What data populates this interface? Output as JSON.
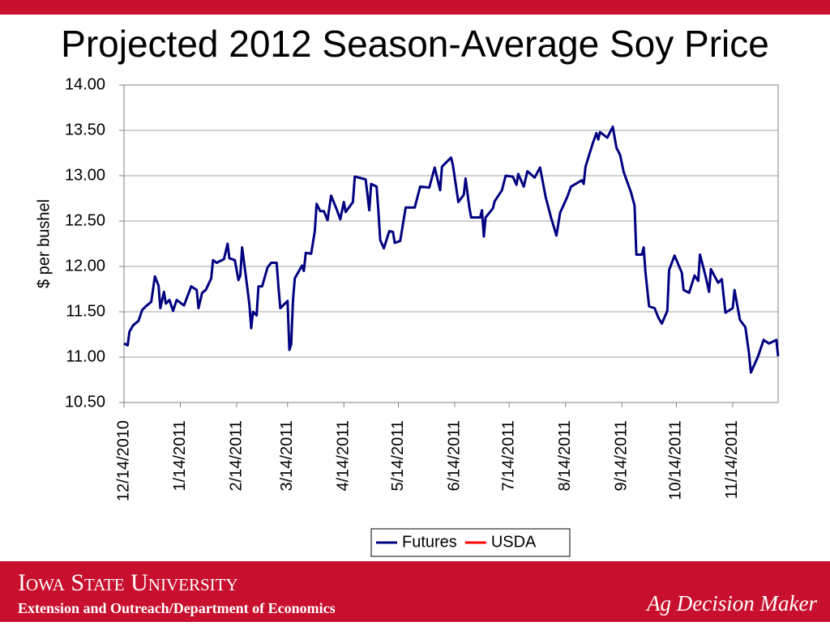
{
  "chart_data": {
    "type": "line",
    "title": "Projected 2012 Season-Average Soy Price",
    "ylabel": "$ per bushel",
    "x": [
      "12/14/2010",
      "12/16/2010",
      "12/17/2010",
      "12/19/2010",
      "12/22/2010",
      "12/24/2010",
      "12/26/2010",
      "12/29/2010",
      "12/31/2010",
      "1/2/2011",
      "1/3/2011",
      "1/5/2011",
      "1/6/2011",
      "1/8/2011",
      "1/10/2011",
      "1/12/2011",
      "1/16/2011",
      "1/20/2011",
      "1/23/2011",
      "1/24/2011",
      "1/26/2011",
      "1/28/2011",
      "1/31/2011",
      "2/1/2011",
      "2/3/2011",
      "2/7/2011",
      "2/9/2011",
      "2/10/2011",
      "2/13/2011",
      "2/15/2011",
      "2/16/2011",
      "2/17/2011",
      "2/19/2011",
      "2/21/2011",
      "2/22/2011",
      "2/23/2011",
      "2/25/2011",
      "2/26/2011",
      "2/28/2011",
      "3/3/2011",
      "3/5/2011",
      "3/8/2011",
      "3/9/2011",
      "3/10/2011",
      "3/14/2011",
      "3/15/2011",
      "3/16/2011",
      "3/17/2011",
      "3/18/2011",
      "3/22/2011",
      "3/23/2011",
      "3/24/2011",
      "3/27/2011",
      "3/29/2011",
      "3/30/2011",
      "4/1/2011",
      "4/3/2011",
      "4/5/2011",
      "4/7/2011",
      "4/10/2011",
      "4/12/2011",
      "4/14/2011",
      "4/15/2011",
      "4/19/2011",
      "4/20/2011",
      "4/26/2011",
      "4/28/2011",
      "4/29/2011",
      "5/2/2011",
      "5/3/2011",
      "5/4/2011",
      "5/6/2011",
      "5/9/2011",
      "5/11/2011",
      "5/12/2011",
      "5/15/2011",
      "5/18/2011",
      "5/21/2011",
      "5/23/2011",
      "5/26/2011",
      "5/31/2011",
      "6/3/2011",
      "6/6/2011",
      "6/7/2011",
      "6/12/2011",
      "6/13/2011",
      "6/16/2011",
      "6/19/2011",
      "6/20/2011",
      "6/22/2011",
      "6/23/2011",
      "6/28/2011",
      "6/29/2011",
      "6/30/2011",
      "7/1/2011",
      "7/5/2011",
      "7/6/2011",
      "7/10/2011",
      "7/12/2011",
      "7/16/2011",
      "7/18/2011",
      "7/19/2011",
      "7/22/2011",
      "7/24/2011",
      "7/28/2011",
      "7/31/2011",
      "8/3/2011",
      "8/6/2011",
      "8/9/2011",
      "8/11/2011",
      "8/15/2011",
      "8/17/2011",
      "8/23/2011",
      "8/24/2011",
      "8/25/2011",
      "8/29/2011",
      "8/31/2011",
      "9/1/2011",
      "9/2/2011",
      "9/6/2011",
      "9/9/2011",
      "9/11/2011",
      "9/13/2011",
      "9/15/2011",
      "9/19/2011",
      "9/21/2011",
      "9/22/2011",
      "9/25/2011",
      "9/26/2011",
      "9/27/2011",
      "9/29/2011",
      "10/2/2011",
      "10/4/2011",
      "10/6/2011",
      "10/9/2011",
      "10/10/2011",
      "10/13/2011",
      "10/17/2011",
      "10/18/2011",
      "10/21/2011",
      "10/24/2011",
      "10/26/2011",
      "10/27/2011",
      "10/30/2011",
      "11/1/2011",
      "11/2/2011",
      "11/6/2011",
      "11/8/2011",
      "11/10/2011",
      "11/14/2011",
      "11/15/2011",
      "11/18/2011",
      "11/21/2011",
      "11/23/2011",
      "11/24/2011",
      "11/28/2011",
      "12/1/2011",
      "12/4/2011",
      "12/8/2011",
      "12/9/2011"
    ],
    "series": [
      {
        "name": "Futures",
        "color": "#000080",
        "values": [
          11.15,
          11.13,
          11.28,
          11.35,
          11.4,
          11.52,
          11.56,
          11.61,
          11.89,
          11.79,
          11.54,
          11.72,
          11.59,
          11.63,
          11.51,
          11.63,
          11.57,
          11.78,
          11.74,
          11.54,
          11.71,
          11.74,
          11.87,
          12.07,
          12.04,
          12.08,
          12.25,
          12.09,
          12.07,
          11.85,
          11.9,
          12.21,
          11.9,
          11.58,
          11.32,
          11.5,
          11.46,
          11.78,
          11.78,
          11.99,
          12.04,
          12.04,
          11.78,
          11.54,
          11.62,
          11.08,
          11.14,
          11.63,
          11.87,
          12.01,
          11.95,
          12.15,
          12.14,
          12.39,
          12.69,
          12.61,
          12.61,
          12.51,
          12.78,
          12.63,
          12.52,
          12.71,
          12.6,
          12.71,
          12.99,
          12.96,
          12.62,
          12.91,
          12.88,
          12.62,
          12.29,
          12.2,
          12.39,
          12.38,
          12.26,
          12.28,
          12.65,
          12.65,
          12.65,
          12.88,
          12.87,
          13.09,
          12.84,
          13.1,
          13.2,
          13.12,
          12.71,
          12.79,
          12.97,
          12.66,
          12.54,
          12.54,
          12.62,
          12.33,
          12.54,
          12.64,
          12.72,
          12.84,
          13.0,
          12.99,
          12.9,
          13.02,
          12.88,
          13.05,
          12.98,
          13.09,
          12.77,
          12.54,
          12.34,
          12.59,
          12.77,
          12.88,
          12.95,
          12.91,
          13.1,
          13.36,
          13.47,
          13.4,
          13.48,
          13.42,
          13.54,
          13.31,
          13.23,
          13.04,
          12.82,
          12.67,
          12.13,
          12.13,
          12.21,
          11.93,
          11.56,
          11.54,
          11.44,
          11.37,
          11.51,
          11.96,
          12.12,
          11.93,
          11.74,
          11.71,
          11.9,
          11.84,
          12.13,
          11.9,
          11.72,
          11.97,
          11.82,
          11.86,
          11.49,
          11.54,
          11.74,
          11.41,
          11.33,
          11.04,
          10.83,
          11.01,
          11.19,
          11.15,
          11.19,
          11.01
        ]
      },
      {
        "name": "USDA",
        "color": "#ff0000",
        "values": [
          null,
          null,
          null,
          null,
          null,
          null,
          null,
          null,
          null,
          null,
          null,
          null,
          null,
          null,
          null,
          null,
          null,
          null,
          null,
          null,
          null,
          null,
          null,
          null,
          null,
          null,
          null,
          null,
          null,
          null,
          null,
          null,
          null,
          null,
          null,
          null,
          null,
          null,
          null,
          null,
          null,
          null,
          null,
          null,
          null,
          null,
          null,
          null,
          null,
          null,
          null,
          null,
          null,
          null,
          null,
          null,
          null,
          null,
          null,
          null,
          null,
          null,
          null,
          null,
          null,
          null,
          null,
          null,
          null,
          null,
          null,
          null,
          null,
          null,
          null,
          null,
          null,
          null,
          null,
          null,
          null,
          null,
          null,
          null,
          null,
          null,
          null,
          null,
          null,
          null,
          null,
          null,
          null,
          null,
          null,
          null,
          null,
          null,
          null,
          null,
          null,
          null,
          null,
          null,
          null,
          null,
          null,
          null,
          null,
          null,
          null,
          null,
          null,
          null,
          null,
          null,
          null,
          null,
          null,
          null,
          null,
          null,
          null,
          null,
          null,
          null,
          null,
          null,
          null,
          null,
          null,
          null,
          null,
          null,
          null,
          null,
          null,
          null,
          null,
          null,
          null,
          null,
          null,
          null,
          null,
          null,
          null,
          null,
          null,
          null,
          null,
          null,
          null,
          null,
          null,
          null,
          null,
          null,
          null,
          null
        ]
      }
    ],
    "xlim": [
      "12/14/2010",
      "12/9/2011"
    ],
    "xticks": [
      "12/14/2010",
      "1/14/2011",
      "2/14/2011",
      "3/14/2011",
      "4/14/2011",
      "5/14/2011",
      "6/14/2011",
      "7/14/2011",
      "8/14/2011",
      "9/14/2011",
      "10/14/2011",
      "11/14/2011"
    ],
    "ylim": [
      10.5,
      14
    ],
    "yticks": [
      {
        "value": 10.5,
        "label": "10.50"
      },
      {
        "value": 11,
        "label": "11.00"
      },
      {
        "value": 11.5,
        "label": "11.50"
      },
      {
        "value": 12,
        "label": "12.00"
      },
      {
        "value": 12.5,
        "label": "12.50"
      },
      {
        "value": 13,
        "label": "13.00"
      },
      {
        "value": 13.5,
        "label": "13.50"
      },
      {
        "value": 14,
        "label": "14.00"
      }
    ],
    "grid": true,
    "legend": "bottom"
  },
  "footer": {
    "university": "Iowa State University",
    "department": "Extension and Outreach/Department of Economics",
    "brand": "Ag Decision Maker"
  }
}
